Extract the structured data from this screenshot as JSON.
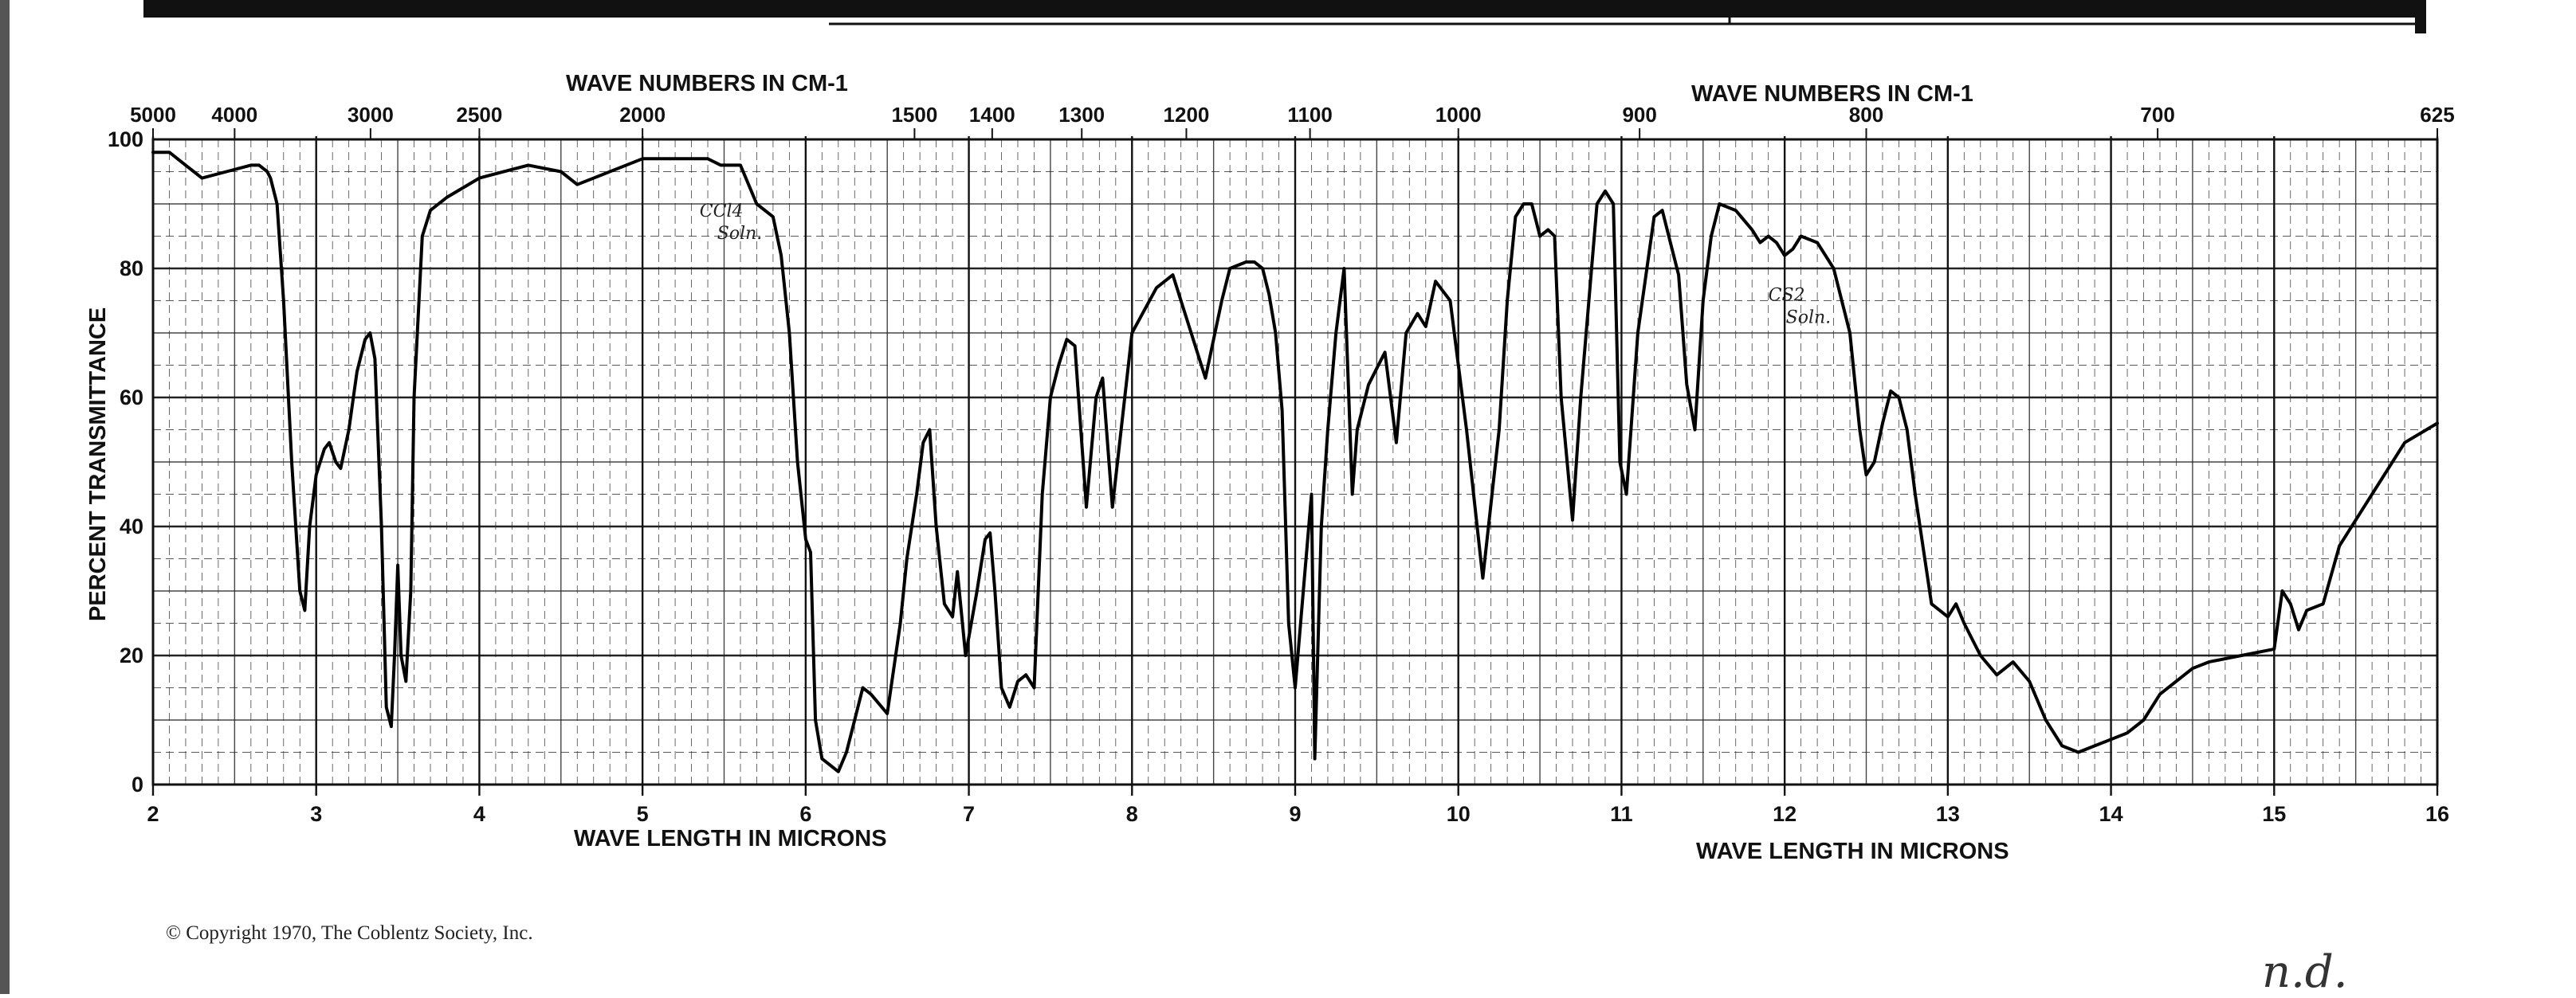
{
  "chart_data": {
    "type": "line",
    "top_axis_title_left": "WAVE NUMBERS IN CM-1",
    "top_axis_title_right": "WAVE NUMBERS IN CM-1",
    "bottom_axis_title_left": "WAVE LENGTH IN MICRONS",
    "bottom_axis_title_right": "WAVE LENGTH IN MICRONS",
    "ylabel": "PERCENT TRANSMITTANCE",
    "ylim": [
      0,
      100
    ],
    "y_ticks": [
      "0",
      "20",
      "40",
      "60",
      "80",
      "100"
    ],
    "x_range_microns": [
      2,
      16
    ],
    "x_ticks_microns": [
      "2",
      "3",
      "4",
      "5",
      "6",
      "7",
      "8",
      "9",
      "10",
      "11",
      "12",
      "13",
      "14",
      "15",
      "16"
    ],
    "wavenumber_ticks": [
      {
        "label": "5000",
        "microns": 2.0
      },
      {
        "label": "4000",
        "microns": 2.5
      },
      {
        "label": "3000",
        "microns": 3.333
      },
      {
        "label": "2500",
        "microns": 4.0
      },
      {
        "label": "2000",
        "microns": 5.0
      },
      {
        "label": "1500",
        "microns": 6.667
      },
      {
        "label": "1400",
        "microns": 7.143
      },
      {
        "label": "1300",
        "microns": 7.692
      },
      {
        "label": "1200",
        "microns": 8.333
      },
      {
        "label": "1100",
        "microns": 9.091
      },
      {
        "label": "1000",
        "microns": 10.0
      },
      {
        "label": "900",
        "microns": 11.111
      },
      {
        "label": "800",
        "microns": 12.5
      },
      {
        "label": "700",
        "microns": 14.286
      },
      {
        "label": "625",
        "microns": 16.0
      }
    ],
    "annotations": [
      {
        "text": "CCl4 Soln.",
        "x": 5.35,
        "y": 88
      },
      {
        "text": "CS2 Soln.",
        "x": 11.9,
        "y": 75
      }
    ],
    "grid": true,
    "series": [
      {
        "x": [
          2.0,
          2.1,
          2.2,
          2.3,
          2.45,
          2.6,
          2.65,
          2.7,
          2.72,
          2.76,
          2.8,
          2.85,
          2.9,
          2.93,
          2.96,
          3.0,
          3.05,
          3.08,
          3.12,
          3.15,
          3.2,
          3.25,
          3.3,
          3.33,
          3.36,
          3.4,
          3.43,
          3.46,
          3.48,
          3.5,
          3.52,
          3.55,
          3.58,
          3.6,
          3.65,
          3.7,
          3.8,
          4.0,
          4.3,
          4.5,
          4.6,
          5.0,
          5.2,
          5.4,
          5.48,
          5.6,
          5.7,
          5.8,
          5.85,
          5.9,
          5.95,
          6.0,
          6.03,
          6.06,
          6.1,
          6.15,
          6.2,
          6.25,
          6.3,
          6.35,
          6.4,
          6.5,
          6.58,
          6.62,
          6.68,
          6.72,
          6.76,
          6.8,
          6.85,
          6.9,
          6.93,
          6.98,
          7.05,
          7.1,
          7.13,
          7.16,
          7.2,
          7.25,
          7.3,
          7.35,
          7.4,
          7.45,
          7.5,
          7.55,
          7.6,
          7.65,
          7.72,
          7.78,
          7.82,
          7.88,
          8.0,
          8.15,
          8.25,
          8.3,
          8.4,
          8.45,
          8.55,
          8.6,
          8.7,
          8.75,
          8.8,
          8.84,
          8.88,
          8.92,
          8.96,
          9.0,
          9.05,
          9.1,
          9.12,
          9.16,
          9.2,
          9.25,
          9.3,
          9.35,
          9.38,
          9.45,
          9.55,
          9.62,
          9.68,
          9.75,
          9.8,
          9.86,
          9.95,
          10.05,
          10.15,
          10.25,
          10.3,
          10.35,
          10.4,
          10.45,
          10.5,
          10.55,
          10.59,
          10.63,
          10.7,
          10.75,
          10.8,
          10.85,
          10.9,
          10.95,
          10.99,
          11.03,
          11.1,
          11.2,
          11.25,
          11.3,
          11.35,
          11.4,
          11.45,
          11.5,
          11.55,
          11.6,
          11.7,
          11.8,
          11.85,
          11.9,
          11.95,
          12.0,
          12.05,
          12.1,
          12.2,
          12.3,
          12.4,
          12.46,
          12.5,
          12.55,
          12.6,
          12.65,
          12.7,
          12.75,
          12.8,
          12.9,
          13.0,
          13.05,
          13.1,
          13.2,
          13.3,
          13.4,
          13.5,
          13.6,
          13.7,
          13.8,
          13.9,
          14.0,
          14.1,
          14.2,
          14.3,
          14.5,
          14.6,
          14.8,
          15.0,
          15.05,
          15.1,
          15.15,
          15.2,
          15.3,
          15.4,
          15.6,
          15.8,
          16.0
        ],
        "values": [
          98,
          98,
          96,
          94,
          95,
          96,
          96,
          95,
          94,
          90,
          75,
          50,
          30,
          27,
          40,
          48,
          52,
          53,
          50,
          49,
          55,
          64,
          69,
          70,
          66,
          40,
          12,
          9,
          20,
          34,
          20,
          16,
          30,
          60,
          85,
          89,
          91,
          94,
          96,
          95,
          93,
          97,
          97,
          97,
          96,
          96,
          90,
          88,
          82,
          70,
          50,
          38,
          36,
          10,
          4,
          3,
          2,
          5,
          10,
          15,
          14,
          11,
          25,
          35,
          45,
          53,
          55,
          40,
          28,
          26,
          33,
          20,
          30,
          38,
          39,
          30,
          15,
          12,
          16,
          17,
          15,
          45,
          60,
          65,
          69,
          68,
          43,
          60,
          63,
          43,
          70,
          77,
          79,
          75,
          67,
          63,
          75,
          80,
          81,
          81,
          80,
          76,
          70,
          58,
          25,
          15,
          30,
          45,
          4,
          40,
          55,
          70,
          80,
          45,
          55,
          62,
          67,
          53,
          70,
          73,
          71,
          78,
          75,
          55,
          32,
          55,
          75,
          88,
          90,
          90,
          85,
          86,
          85,
          60,
          41,
          60,
          75,
          90,
          92,
          90,
          50,
          45,
          70,
          88,
          89,
          84,
          79,
          62,
          55,
          75,
          85,
          90,
          89,
          86,
          84,
          85,
          84,
          82,
          83,
          85,
          84,
          80,
          70,
          55,
          48,
          50,
          56,
          61,
          60,
          55,
          45,
          28,
          26,
          28,
          25,
          20,
          17,
          19,
          16,
          10,
          6,
          5,
          6,
          7,
          8,
          10,
          14,
          18,
          19,
          20,
          21,
          30,
          28,
          24,
          27,
          28,
          37,
          45,
          53,
          56
        ]
      }
    ]
  },
  "copyright": "© Copyright 1970, The Coblentz Society, Inc.",
  "handwritten_note": "n.d."
}
